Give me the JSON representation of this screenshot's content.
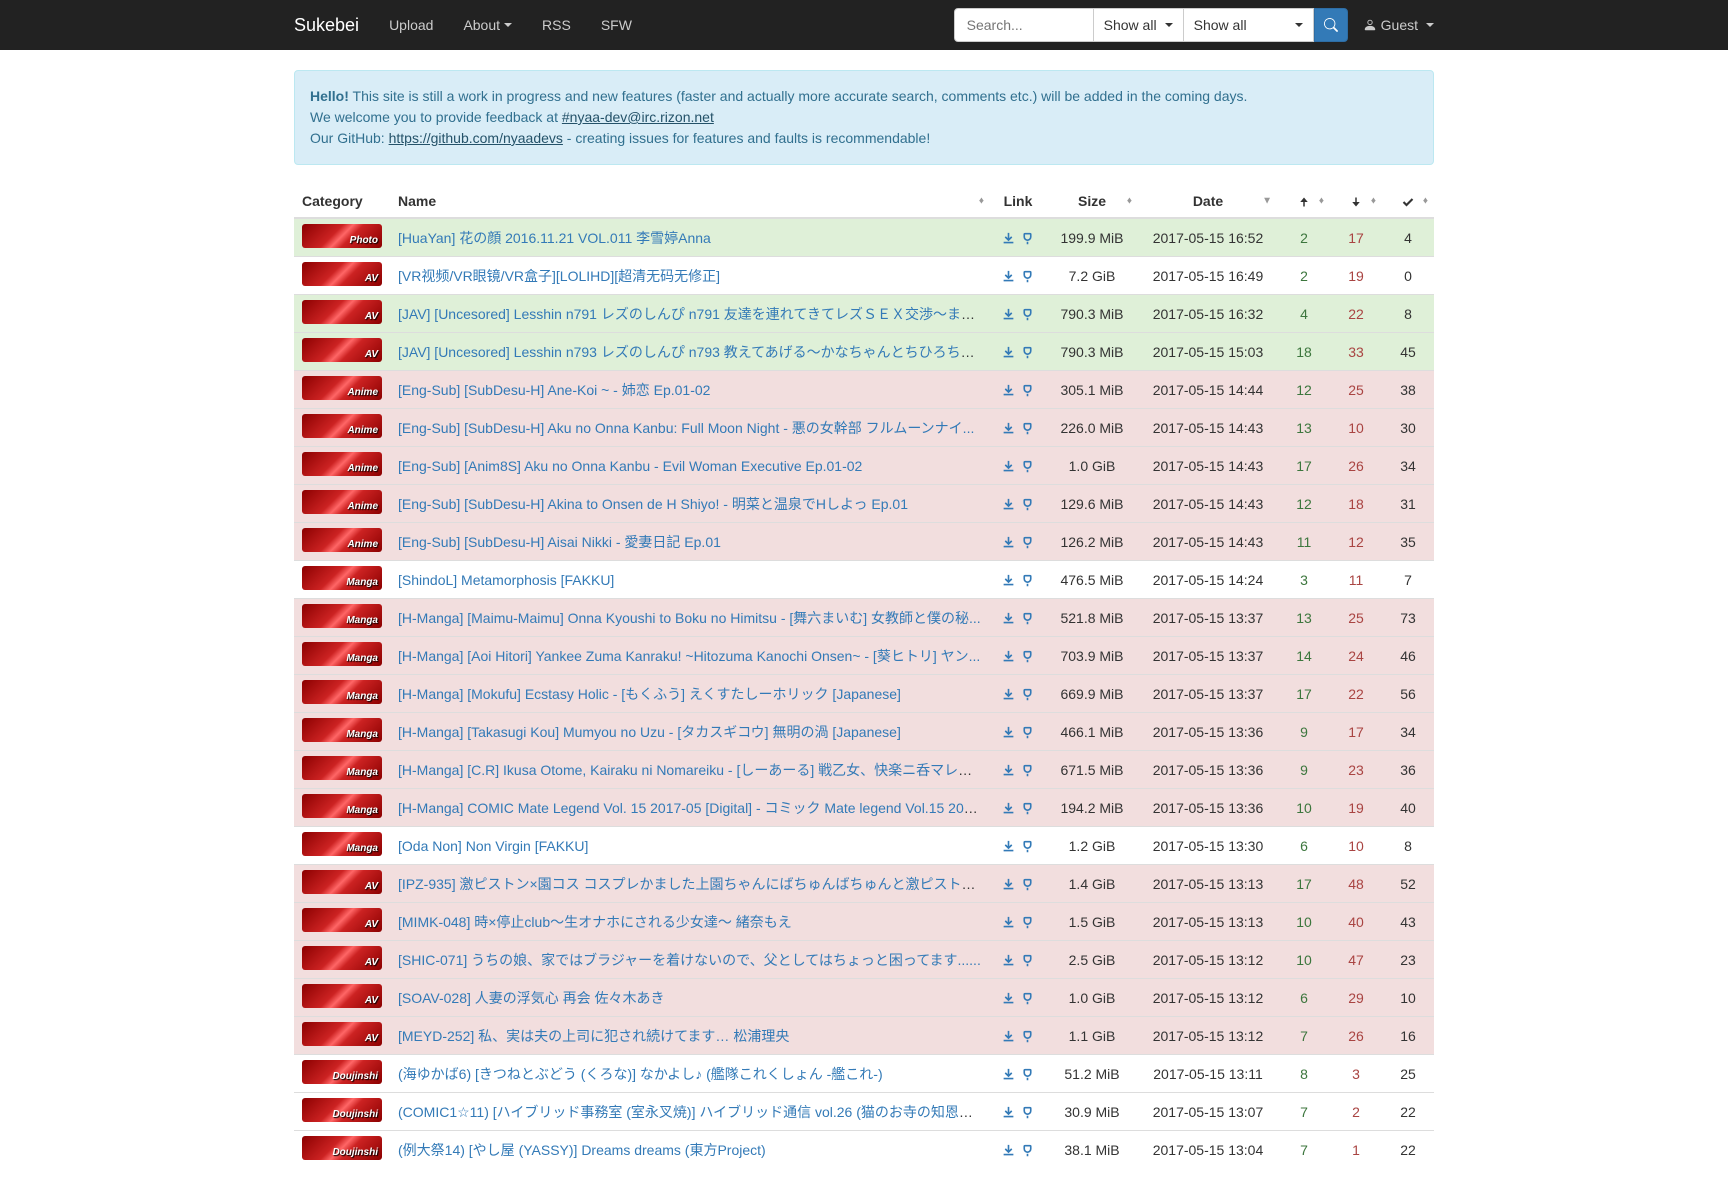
{
  "navbar": {
    "brand": "Sukebei",
    "links": {
      "upload": "Upload",
      "about": "About",
      "rss": "RSS",
      "sfw": "SFW"
    },
    "search": {
      "placeholder": "Search..."
    },
    "filter1": "Show all",
    "filter2": "Show all",
    "guest": "Guest"
  },
  "alert": {
    "hello": "Hello!",
    "text1": " This site is still a work in progress and new features (faster and actually more accurate search, comments etc.) will be added in the coming days.",
    "text2": "We welcome you to provide feedback at ",
    "irc": "#nyaa-dev@irc.rizon.net",
    "text3": "Our GitHub: ",
    "github": "https://github.com/nyaadevs",
    "text4": " - creating issues for features and faults is recommendable!"
  },
  "headers": {
    "category": "Category",
    "name": "Name",
    "link": "Link",
    "size": "Size",
    "date": "Date"
  },
  "rows": [
    {
      "cat": "Photo",
      "cls": "success",
      "name": "[HuaYan] 花の顔 2016.11.21 VOL.011 李雪婷Anna",
      "size": "199.9 MiB",
      "date": "2017-05-15 16:52",
      "se": "2",
      "le": "17",
      "dl": "4"
    },
    {
      "cat": "AV",
      "cls": "default",
      "name": "[VR视频/VR眼镜/VR盒子][LOLIHD][超清无码无修正]",
      "size": "7.2 GiB",
      "date": "2017-05-15 16:49",
      "se": "2",
      "le": "19",
      "dl": "0"
    },
    {
      "cat": "AV",
      "cls": "success",
      "name": "[JAV] [Uncesored] Lesshin n791 レズのしんぴ n791 友達を連れてきてレズＳＥＸ交渉～まな...",
      "size": "790.3 MiB",
      "date": "2017-05-15 16:32",
      "se": "4",
      "le": "22",
      "dl": "8"
    },
    {
      "cat": "AV",
      "cls": "success",
      "name": "[JAV] [Uncesored] Lesshin n793 レズのしんぴ n793 教えてあげる～かなちゃんとちひろちゃ...",
      "size": "790.3 MiB",
      "date": "2017-05-15 15:03",
      "se": "18",
      "le": "33",
      "dl": "45"
    },
    {
      "cat": "Anime",
      "cls": "danger",
      "name": "[Eng-Sub] [SubDesu-H] Ane-Koi ~ - 姉恋 Ep.01-02",
      "size": "305.1 MiB",
      "date": "2017-05-15 14:44",
      "se": "12",
      "le": "25",
      "dl": "38"
    },
    {
      "cat": "Anime",
      "cls": "danger",
      "name": "[Eng-Sub] [SubDesu-H] Aku no Onna Kanbu: Full Moon Night - 悪の女幹部 フルムーンナイ...",
      "size": "226.0 MiB",
      "date": "2017-05-15 14:43",
      "se": "13",
      "le": "10",
      "dl": "30"
    },
    {
      "cat": "Anime",
      "cls": "danger",
      "name": "[Eng-Sub] [Anim8S] Aku no Onna Kanbu - Evil Woman Executive Ep.01-02",
      "size": "1.0 GiB",
      "date": "2017-05-15 14:43",
      "se": "17",
      "le": "26",
      "dl": "34"
    },
    {
      "cat": "Anime",
      "cls": "danger",
      "name": "[Eng-Sub] [SubDesu-H] Akina to Onsen de H Shiyo! - 明菜と温泉でHしよっ Ep.01",
      "size": "129.6 MiB",
      "date": "2017-05-15 14:43",
      "se": "12",
      "le": "18",
      "dl": "31"
    },
    {
      "cat": "Anime",
      "cls": "danger",
      "name": "[Eng-Sub] [SubDesu-H] Aisai Nikki - 愛妻日記 Ep.01",
      "size": "126.2 MiB",
      "date": "2017-05-15 14:43",
      "se": "11",
      "le": "12",
      "dl": "35"
    },
    {
      "cat": "Manga",
      "cls": "default",
      "name": "[ShindoL] Metamorphosis [FAKKU]",
      "size": "476.5 MiB",
      "date": "2017-05-15 14:24",
      "se": "3",
      "le": "11",
      "dl": "7"
    },
    {
      "cat": "Manga",
      "cls": "danger",
      "name": "[H-Manga] [Maimu-Maimu] Onna Kyoushi to Boku no Himitsu - [舞六まいむ] 女教師と僕の秘...",
      "size": "521.8 MiB",
      "date": "2017-05-15 13:37",
      "se": "13",
      "le": "25",
      "dl": "73"
    },
    {
      "cat": "Manga",
      "cls": "danger",
      "name": "[H-Manga] [Aoi Hitori] Yankee Zuma Kanraku! ~Hitozuma Kanochi Onsen~ - [葵ヒトリ] ヤン...",
      "size": "703.9 MiB",
      "date": "2017-05-15 13:37",
      "se": "14",
      "le": "24",
      "dl": "46"
    },
    {
      "cat": "Manga",
      "cls": "danger",
      "name": "[H-Manga] [Mokufu] Ecstasy Holic - [もくふう] えくすたしーホリック [Japanese]",
      "size": "669.9 MiB",
      "date": "2017-05-15 13:37",
      "se": "17",
      "le": "22",
      "dl": "56"
    },
    {
      "cat": "Manga",
      "cls": "danger",
      "name": "[H-Manga] [Takasugi Kou] Mumyou no Uzu - [タカスギコウ] 無明の渦 [Japanese]",
      "size": "466.1 MiB",
      "date": "2017-05-15 13:36",
      "se": "9",
      "le": "17",
      "dl": "34"
    },
    {
      "cat": "Manga",
      "cls": "danger",
      "name": "[H-Manga] [C.R] Ikusa Otome, Kairaku ni Nomareiku - [しーあーる] 戦乙女、快楽ニ呑マレイ...",
      "size": "671.5 MiB",
      "date": "2017-05-15 13:36",
      "se": "9",
      "le": "23",
      "dl": "36"
    },
    {
      "cat": "Manga",
      "cls": "danger",
      "name": "[H-Manga] COMIC Mate Legend Vol. 15 2017-05 [Digital] - コミック Mate legend Vol.15 201...",
      "size": "194.2 MiB",
      "date": "2017-05-15 13:36",
      "se": "10",
      "le": "19",
      "dl": "40"
    },
    {
      "cat": "Manga",
      "cls": "default",
      "name": "[Oda Non] Non Virgin [FAKKU]",
      "size": "1.2 GiB",
      "date": "2017-05-15 13:30",
      "se": "6",
      "le": "10",
      "dl": "8"
    },
    {
      "cat": "AV",
      "cls": "danger",
      "name": "[IPZ-935] 激ピストン×園コス コスプレかました上園ちゃんにばちゅんばちゅんと激ピストン...",
      "size": "1.4 GiB",
      "date": "2017-05-15 13:13",
      "se": "17",
      "le": "48",
      "dl": "52"
    },
    {
      "cat": "AV",
      "cls": "danger",
      "name": "[MIMK-048] 時×停止club～生オナホにされる少女達～ 緒奈もえ",
      "size": "1.5 GiB",
      "date": "2017-05-15 13:13",
      "se": "10",
      "le": "40",
      "dl": "43"
    },
    {
      "cat": "AV",
      "cls": "danger",
      "name": "[SHIC-071] うちの娘、家ではブラジャーを着けないので、父としてはちょっと困ってます......",
      "size": "2.5 GiB",
      "date": "2017-05-15 13:12",
      "se": "10",
      "le": "47",
      "dl": "23"
    },
    {
      "cat": "AV",
      "cls": "danger",
      "name": "[SOAV-028] 人妻の浮気心 再会 佐々木あき",
      "size": "1.0 GiB",
      "date": "2017-05-15 13:12",
      "se": "6",
      "le": "29",
      "dl": "10"
    },
    {
      "cat": "AV",
      "cls": "danger",
      "name": "[MEYD-252] 私、実は夫の上司に犯され続けてます… 松浦理央",
      "size": "1.1 GiB",
      "date": "2017-05-15 13:12",
      "se": "7",
      "le": "26",
      "dl": "16"
    },
    {
      "cat": "Doujinshi",
      "cls": "default",
      "name": "(海ゆかば6) [きつねとぶどう (くろな)] なかよし♪ (艦隊これくしょん -艦これ-)",
      "size": "51.2 MiB",
      "date": "2017-05-15 13:11",
      "se": "8",
      "le": "3",
      "dl": "25"
    },
    {
      "cat": "Doujinshi",
      "cls": "default",
      "name": "(COMIC1☆11) [ハイブリッド事務室 (室永叉焼)] ハイブリッド通信 vol.26 (猫のお寺の知恩さ...",
      "size": "30.9 MiB",
      "date": "2017-05-15 13:07",
      "se": "7",
      "le": "2",
      "dl": "22"
    },
    {
      "cat": "Doujinshi",
      "cls": "default",
      "name": "(例大祭14) [やし屋 (YASSY)] Dreams dreams (東方Project)",
      "size": "38.1 MiB",
      "date": "2017-05-15 13:04",
      "se": "7",
      "le": "1",
      "dl": "22"
    }
  ]
}
